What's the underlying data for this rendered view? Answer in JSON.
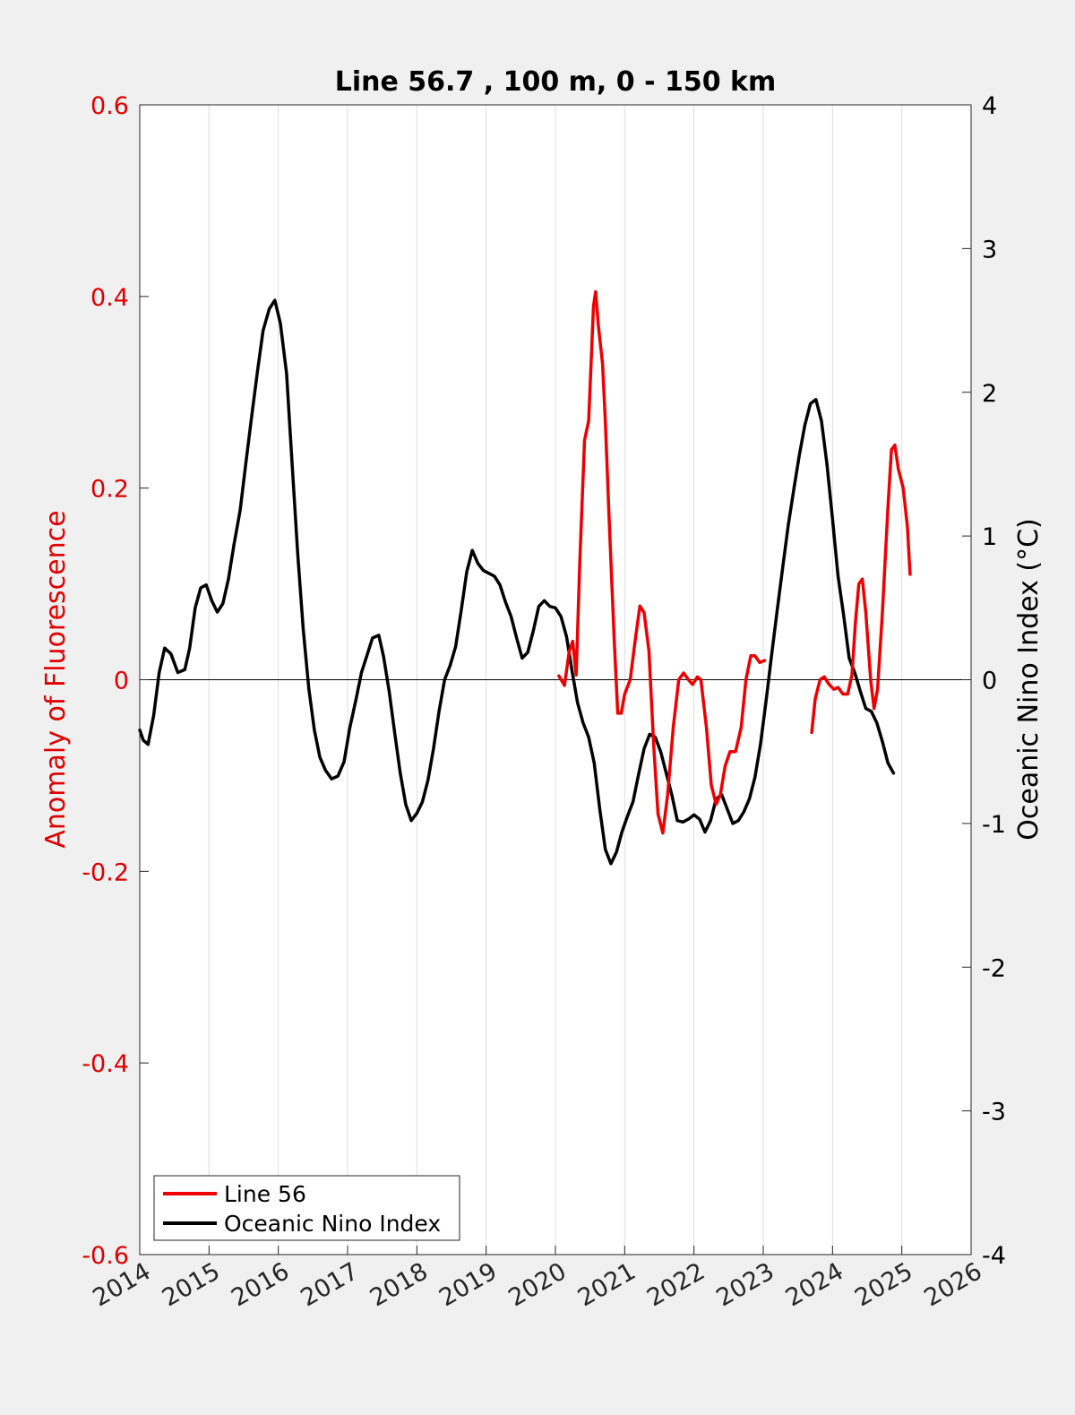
{
  "chart_data": {
    "type": "line",
    "title": "Line 56.7 , 100 m, 0 - 150 km",
    "xlabel": "",
    "ylabel_left": "Anomaly of Fluorescence",
    "ylabel_right": "Oceanic Nino Index (°C)",
    "xlim": [
      2014,
      2026
    ],
    "ylim_left": [
      -0.6,
      0.6
    ],
    "ylim_right": [
      -4,
      4
    ],
    "x_ticks": [
      "2014",
      "2015",
      "2016",
      "2017",
      "2018",
      "2019",
      "2020",
      "2021",
      "2022",
      "2023",
      "2024",
      "2025",
      "2026"
    ],
    "y_ticks_left": [
      "-0.6",
      "-0.4",
      "-0.2",
      "0",
      "0.2",
      "0.4",
      "0.6"
    ],
    "y_ticks_right": [
      "-4",
      "-3",
      "-2",
      "-1",
      "0",
      "1",
      "2",
      "3",
      "4"
    ],
    "grid": "vertical",
    "legend_position": "bottom-left",
    "colors": {
      "left_axis": "#e00000",
      "line56": "#ee0000",
      "oni": "#000000",
      "grid": "#dcdcdc",
      "plot_bg": "#ffffff",
      "figure_bg": "#f0f0f0"
    },
    "series": [
      {
        "name": "Line 56",
        "axis": "left",
        "segments": [
          [
            [
              2020.05,
              0.004
            ],
            [
              2020.13,
              -0.006
            ],
            [
              2020.2,
              0.03
            ],
            [
              2020.25,
              0.04
            ],
            [
              2020.3,
              0.005
            ],
            [
              2020.35,
              0.12
            ],
            [
              2020.42,
              0.25
            ],
            [
              2020.48,
              0.27
            ],
            [
              2020.55,
              0.39
            ],
            [
              2020.58,
              0.405
            ],
            [
              2020.62,
              0.37
            ],
            [
              2020.68,
              0.33
            ],
            [
              2020.72,
              0.27
            ],
            [
              2020.78,
              0.16
            ],
            [
              2020.85,
              0.04
            ],
            [
              2020.9,
              -0.035
            ],
            [
              2020.95,
              -0.035
            ],
            [
              2021.0,
              -0.015
            ],
            [
              2021.08,
              0.0
            ],
            [
              2021.15,
              0.04
            ],
            [
              2021.22,
              0.077
            ],
            [
              2021.28,
              0.07
            ],
            [
              2021.35,
              0.03
            ],
            [
              2021.42,
              -0.07
            ],
            [
              2021.48,
              -0.14
            ],
            [
              2021.55,
              -0.16
            ],
            [
              2021.62,
              -0.12
            ],
            [
              2021.7,
              -0.05
            ],
            [
              2021.78,
              0.0
            ],
            [
              2021.85,
              0.007
            ],
            [
              2021.92,
              0.0
            ],
            [
              2021.98,
              -0.005
            ],
            [
              2022.05,
              0.003
            ],
            [
              2022.1,
              0.0
            ],
            [
              2022.18,
              -0.05
            ],
            [
              2022.25,
              -0.11
            ],
            [
              2022.32,
              -0.13
            ],
            [
              2022.38,
              -0.12
            ],
            [
              2022.45,
              -0.09
            ],
            [
              2022.52,
              -0.075
            ],
            [
              2022.6,
              -0.075
            ],
            [
              2022.68,
              -0.05
            ],
            [
              2022.75,
              0.0
            ],
            [
              2022.82,
              0.025
            ],
            [
              2022.88,
              0.025
            ],
            [
              2022.95,
              0.018
            ],
            [
              2023.02,
              0.02
            ]
          ],
          [
            [
              2023.7,
              -0.055
            ],
            [
              2023.75,
              -0.02
            ],
            [
              2023.82,
              0.0
            ],
            [
              2023.88,
              0.003
            ],
            [
              2023.95,
              -0.005
            ],
            [
              2024.02,
              -0.01
            ],
            [
              2024.08,
              -0.008
            ],
            [
              2024.15,
              -0.015
            ],
            [
              2024.22,
              -0.015
            ],
            [
              2024.28,
              0.005
            ],
            [
              2024.33,
              0.06
            ],
            [
              2024.38,
              0.1
            ],
            [
              2024.43,
              0.105
            ],
            [
              2024.48,
              0.07
            ],
            [
              2024.55,
              0.0
            ],
            [
              2024.6,
              -0.03
            ],
            [
              2024.65,
              -0.01
            ],
            [
              2024.72,
              0.07
            ],
            [
              2024.8,
              0.18
            ],
            [
              2024.85,
              0.24
            ],
            [
              2024.9,
              0.245
            ],
            [
              2024.95,
              0.22
            ],
            [
              2025.02,
              0.2
            ],
            [
              2025.08,
              0.16
            ],
            [
              2025.12,
              0.11
            ]
          ]
        ]
      },
      {
        "name": "Oceanic Nino Index",
        "axis": "right",
        "points": [
          [
            2014.0,
            -0.35
          ],
          [
            2014.05,
            -0.42
          ],
          [
            2014.12,
            -0.45
          ],
          [
            2014.2,
            -0.25
          ],
          [
            2014.28,
            0.05
          ],
          [
            2014.36,
            0.22
          ],
          [
            2014.45,
            0.18
          ],
          [
            2014.55,
            0.05
          ],
          [
            2014.65,
            0.07
          ],
          [
            2014.72,
            0.22
          ],
          [
            2014.8,
            0.5
          ],
          [
            2014.88,
            0.64
          ],
          [
            2014.96,
            0.66
          ],
          [
            2015.04,
            0.55
          ],
          [
            2015.12,
            0.47
          ],
          [
            2015.2,
            0.53
          ],
          [
            2015.28,
            0.7
          ],
          [
            2015.36,
            0.94
          ],
          [
            2015.45,
            1.18
          ],
          [
            2015.53,
            1.5
          ],
          [
            2015.62,
            1.85
          ],
          [
            2015.7,
            2.15
          ],
          [
            2015.78,
            2.43
          ],
          [
            2015.87,
            2.58
          ],
          [
            2015.95,
            2.64
          ],
          [
            2016.03,
            2.48
          ],
          [
            2016.12,
            2.13
          ],
          [
            2016.2,
            1.5
          ],
          [
            2016.28,
            0.88
          ],
          [
            2016.36,
            0.35
          ],
          [
            2016.44,
            -0.06
          ],
          [
            2016.52,
            -0.35
          ],
          [
            2016.6,
            -0.54
          ],
          [
            2016.68,
            -0.63
          ],
          [
            2016.77,
            -0.69
          ],
          [
            2016.86,
            -0.67
          ],
          [
            2016.95,
            -0.57
          ],
          [
            2017.03,
            -0.34
          ],
          [
            2017.12,
            -0.14
          ],
          [
            2017.2,
            0.05
          ],
          [
            2017.28,
            0.17
          ],
          [
            2017.36,
            0.29
          ],
          [
            2017.45,
            0.31
          ],
          [
            2017.52,
            0.16
          ],
          [
            2017.6,
            -0.08
          ],
          [
            2017.68,
            -0.37
          ],
          [
            2017.76,
            -0.65
          ],
          [
            2017.84,
            -0.87
          ],
          [
            2017.92,
            -0.98
          ],
          [
            2018.0,
            -0.93
          ],
          [
            2018.08,
            -0.85
          ],
          [
            2018.16,
            -0.7
          ],
          [
            2018.24,
            -0.48
          ],
          [
            2018.32,
            -0.22
          ],
          [
            2018.4,
            0.0
          ],
          [
            2018.48,
            0.1
          ],
          [
            2018.56,
            0.23
          ],
          [
            2018.64,
            0.48
          ],
          [
            2018.72,
            0.75
          ],
          [
            2018.8,
            0.9
          ],
          [
            2018.88,
            0.81
          ],
          [
            2018.96,
            0.76
          ],
          [
            2019.04,
            0.74
          ],
          [
            2019.12,
            0.72
          ],
          [
            2019.2,
            0.66
          ],
          [
            2019.28,
            0.54
          ],
          [
            2019.36,
            0.44
          ],
          [
            2019.44,
            0.29
          ],
          [
            2019.52,
            0.15
          ],
          [
            2019.6,
            0.19
          ],
          [
            2019.68,
            0.34
          ],
          [
            2019.76,
            0.51
          ],
          [
            2019.84,
            0.55
          ],
          [
            2019.92,
            0.51
          ],
          [
            2020.0,
            0.5
          ],
          [
            2020.08,
            0.44
          ],
          [
            2020.16,
            0.3
          ],
          [
            2020.24,
            0.06
          ],
          [
            2020.32,
            -0.16
          ],
          [
            2020.4,
            -0.3
          ],
          [
            2020.48,
            -0.4
          ],
          [
            2020.56,
            -0.58
          ],
          [
            2020.64,
            -0.9
          ],
          [
            2020.72,
            -1.18
          ],
          [
            2020.8,
            -1.28
          ],
          [
            2020.88,
            -1.2
          ],
          [
            2020.96,
            -1.06
          ],
          [
            2021.04,
            -0.95
          ],
          [
            2021.12,
            -0.85
          ],
          [
            2021.2,
            -0.66
          ],
          [
            2021.28,
            -0.48
          ],
          [
            2021.36,
            -0.38
          ],
          [
            2021.44,
            -0.4
          ],
          [
            2021.52,
            -0.5
          ],
          [
            2021.6,
            -0.65
          ],
          [
            2021.68,
            -0.8
          ],
          [
            2021.76,
            -0.98
          ],
          [
            2021.84,
            -0.99
          ],
          [
            2021.92,
            -0.97
          ],
          [
            2022.0,
            -0.94
          ],
          [
            2022.08,
            -0.97
          ],
          [
            2022.16,
            -1.06
          ],
          [
            2022.24,
            -0.98
          ],
          [
            2022.32,
            -0.83
          ],
          [
            2022.4,
            -0.8
          ],
          [
            2022.48,
            -0.9
          ],
          [
            2022.56,
            -1.0
          ],
          [
            2022.64,
            -0.98
          ],
          [
            2022.72,
            -0.92
          ],
          [
            2022.8,
            -0.83
          ],
          [
            2022.88,
            -0.68
          ],
          [
            2022.96,
            -0.45
          ],
          [
            2023.04,
            -0.15
          ],
          [
            2023.12,
            0.17
          ],
          [
            2023.2,
            0.48
          ],
          [
            2023.28,
            0.78
          ],
          [
            2023.36,
            1.07
          ],
          [
            2023.44,
            1.32
          ],
          [
            2023.52,
            1.56
          ],
          [
            2023.6,
            1.77
          ],
          [
            2023.68,
            1.92
          ],
          [
            2023.76,
            1.95
          ],
          [
            2023.84,
            1.8
          ],
          [
            2023.92,
            1.5
          ],
          [
            2024.0,
            1.12
          ],
          [
            2024.08,
            0.72
          ],
          [
            2024.16,
            0.45
          ],
          [
            2024.24,
            0.15
          ],
          [
            2024.32,
            0.05
          ],
          [
            2024.4,
            -0.08
          ],
          [
            2024.48,
            -0.2
          ],
          [
            2024.56,
            -0.22
          ],
          [
            2024.64,
            -0.3
          ],
          [
            2024.72,
            -0.43
          ],
          [
            2024.8,
            -0.58
          ],
          [
            2024.88,
            -0.65
          ]
        ]
      }
    ]
  }
}
